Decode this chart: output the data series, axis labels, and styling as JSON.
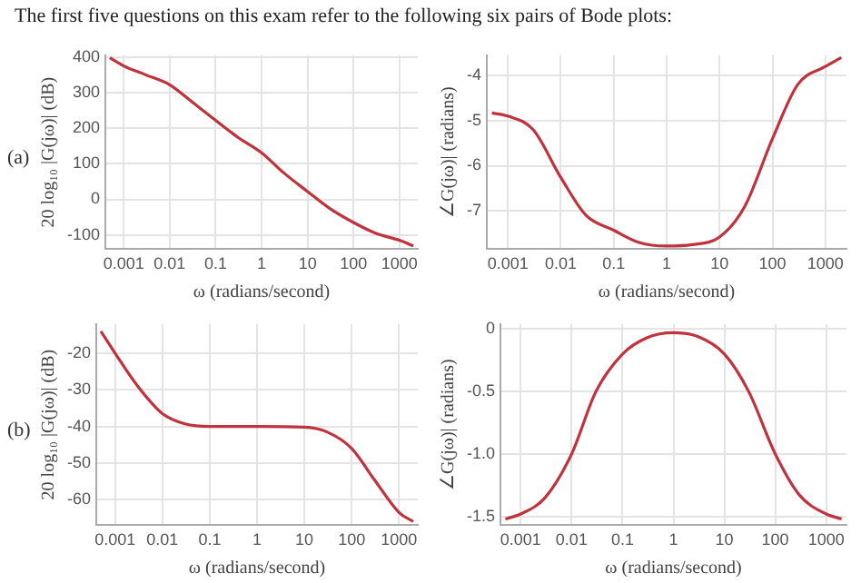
{
  "chart_data": [
    {
      "type": "line",
      "title": "The first five questions on this exam refer to the following six pairs of Bode plots:",
      "annotations": [
        "(a)"
      ],
      "xlabel": "ω (radians/second)",
      "ylabel": "20 log₁₀ |G(jω)| (dB)",
      "log": "x",
      "grid": true,
      "line_style": "solid",
      "marker": "none",
      "xlim": [
        0.0004,
        2500
      ],
      "xticks": [
        0.001,
        0.01,
        0.1,
        1,
        10,
        100,
        1000
      ],
      "ylim": [
        -140,
        405
      ],
      "yticks": [
        -100,
        0,
        100,
        200,
        300,
        400
      ],
      "x": [
        0.0005,
        0.001,
        0.003,
        0.01,
        0.03,
        0.1,
        0.3,
        1,
        3,
        10,
        30,
        100,
        300,
        1000,
        2000
      ],
      "series": [
        {
          "color": "#c0323c",
          "values": [
            398,
            375,
            350,
            322,
            275,
            222,
            175,
            131,
            75,
            22,
            -25,
            -65,
            -95,
            -115,
            -131
          ]
        }
      ]
    },
    {
      "type": "line",
      "xlabel": "ω (radians/second)",
      "ylabel": "∠G(jω)| (radians)",
      "log": "x",
      "grid": true,
      "line_style": "solid",
      "marker": "none",
      "xlim": [
        0.0004,
        2500
      ],
      "xticks": [
        0.001,
        0.01,
        0.1,
        1,
        10,
        100,
        1000
      ],
      "ylim": [
        -7.85,
        -3.55
      ],
      "yticks": [
        -7,
        -6,
        -5,
        -4
      ],
      "x": [
        0.0005,
        0.001,
        0.003,
        0.01,
        0.03,
        0.1,
        0.3,
        1,
        3,
        10,
        30,
        100,
        300,
        1000,
        2000
      ],
      "series": [
        {
          "color": "#c0323c",
          "values": [
            -4.83,
            -4.9,
            -5.2,
            -6.26,
            -7.1,
            -7.43,
            -7.7,
            -7.78,
            -7.75,
            -7.58,
            -6.9,
            -5.4,
            -4.2,
            -3.8,
            -3.6
          ]
        }
      ]
    },
    {
      "type": "line",
      "annotations": [
        "(b)"
      ],
      "xlabel": "ω (radians/second)",
      "ylabel": "20 log₁₀ |G(jω)| (dB)",
      "log": "x",
      "grid": true,
      "line_style": "solid",
      "marker": "none",
      "xlim": [
        0.0004,
        2500
      ],
      "xticks": [
        0.001,
        0.01,
        0.1,
        1,
        10,
        100,
        1000
      ],
      "ylim": [
        -67,
        -12
      ],
      "yticks": [
        -60,
        -50,
        -40,
        -30,
        -20
      ],
      "x": [
        0.0005,
        0.001,
        0.003,
        0.01,
        0.03,
        0.1,
        1,
        10,
        30,
        100,
        300,
        1000,
        2000
      ],
      "series": [
        {
          "color": "#c0323c",
          "values": [
            -14,
            -20,
            -29,
            -36.5,
            -39.3,
            -40,
            -40,
            -40.2,
            -41.5,
            -46,
            -54.5,
            -63.5,
            -66
          ]
        }
      ]
    },
    {
      "type": "line",
      "xlabel": "ω (radians/second)",
      "ylabel": "∠G(jω)| (radians)",
      "log": "x",
      "grid": true,
      "line_style": "solid",
      "marker": "none",
      "xlim": [
        0.0004,
        2500
      ],
      "xticks": [
        0.001,
        0.01,
        0.1,
        1,
        10,
        100,
        1000
      ],
      "ylim": [
        -1.57,
        0.04
      ],
      "yticks": [
        {
          "value": -1.5,
          "label": "-1.5"
        },
        {
          "value": -1,
          "label": "-1.0"
        },
        {
          "value": -0.5,
          "label": "-0.5"
        },
        {
          "value": 0,
          "label": "0"
        }
      ],
      "x": [
        0.0005,
        0.001,
        0.003,
        0.01,
        0.03,
        0.1,
        0.3,
        1,
        3,
        10,
        30,
        100,
        300,
        1000,
        2000
      ],
      "series": [
        {
          "color": "#c0323c",
          "values": [
            -1.52,
            -1.48,
            -1.35,
            -1.0,
            -0.5,
            -0.2,
            -0.07,
            -0.03,
            -0.06,
            -0.2,
            -0.5,
            -1.0,
            -1.33,
            -1.48,
            -1.52
          ]
        }
      ]
    }
  ]
}
